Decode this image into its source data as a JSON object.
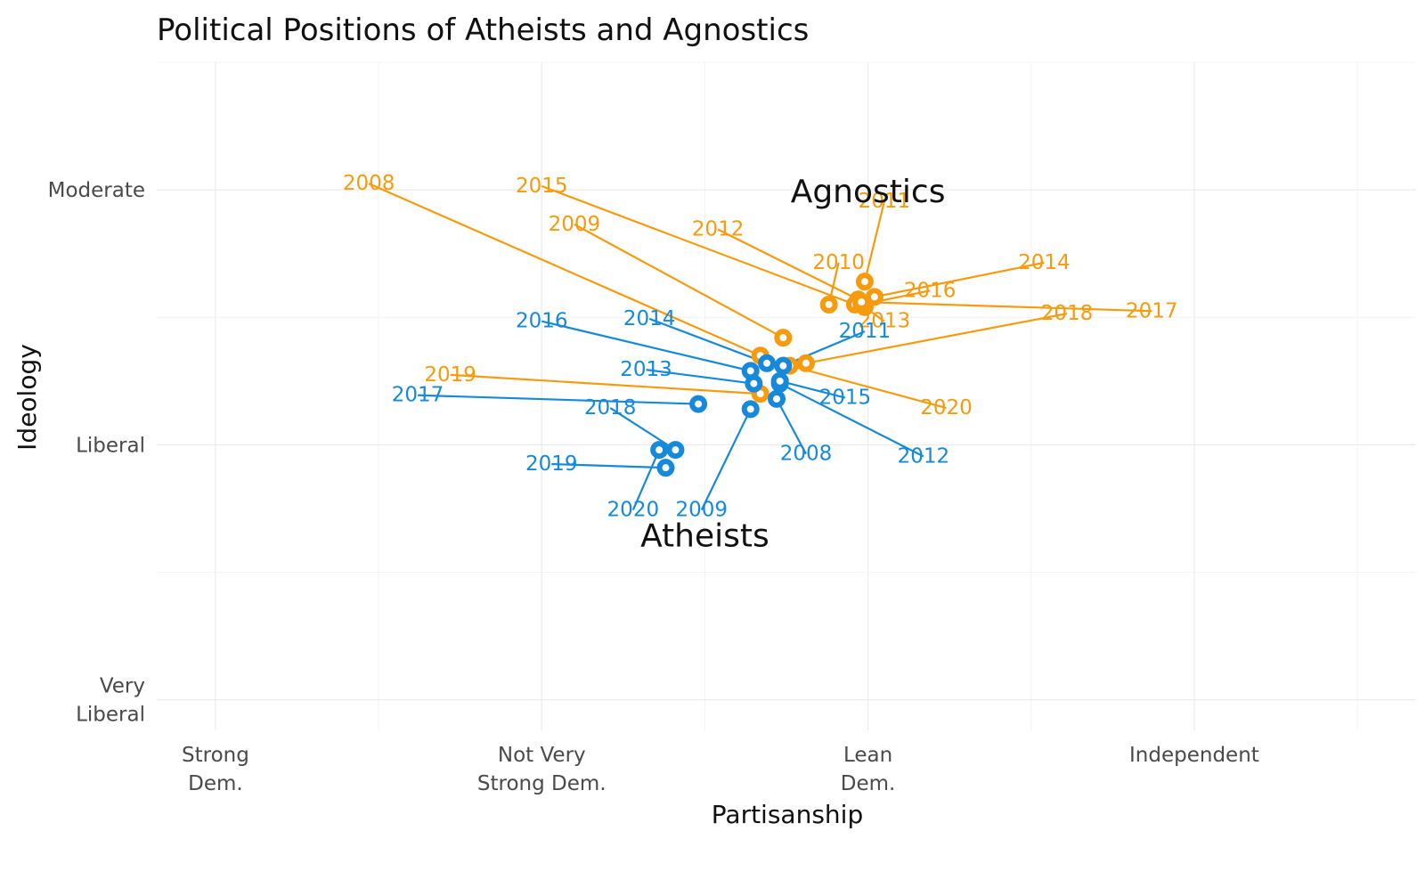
{
  "chart_data": {
    "type": "scatter",
    "title": "Political Positions of Atheists and Agnostics",
    "xlabel": "Partisanship",
    "ylabel": "Ideology",
    "x_ticks": [
      {
        "value": 0,
        "label": [
          "Strong",
          "Dem."
        ]
      },
      {
        "value": 1,
        "label": [
          "Not Very",
          "Strong Dem."
        ]
      },
      {
        "value": 2,
        "label": [
          "Lean",
          "Dem."
        ]
      },
      {
        "value": 3,
        "label": [
          "Independent"
        ]
      }
    ],
    "y_ticks": [
      {
        "value": 0,
        "label": [
          "Very",
          "Liberal"
        ]
      },
      {
        "value": 1,
        "label": [
          "Liberal"
        ]
      },
      {
        "value": 2,
        "label": [
          "Moderate"
        ]
      }
    ],
    "xlim": [
      -0.18,
      3.68
    ],
    "ylim": [
      -0.12,
      2.5
    ],
    "series": [
      {
        "name": "Agnostics",
        "color": "#F79B0E",
        "points": [
          {
            "year": "2008",
            "x": 1.67,
            "y": 1.35
          },
          {
            "year": "2009",
            "x": 1.74,
            "y": 1.42
          },
          {
            "year": "2010",
            "x": 1.88,
            "y": 1.55
          },
          {
            "year": "2011",
            "x": 1.99,
            "y": 1.64
          },
          {
            "year": "2012",
            "x": 1.97,
            "y": 1.57
          },
          {
            "year": "2013",
            "x": 1.99,
            "y": 1.54
          },
          {
            "year": "2014",
            "x": 2.02,
            "y": 1.58
          },
          {
            "year": "2015",
            "x": 1.96,
            "y": 1.55
          },
          {
            "year": "2016",
            "x": 1.98,
            "y": 1.55
          },
          {
            "year": "2017",
            "x": 1.98,
            "y": 1.56
          },
          {
            "year": "2018",
            "x": 1.81,
            "y": 1.32
          },
          {
            "year": "2019",
            "x": 1.67,
            "y": 1.2
          },
          {
            "year": "2020",
            "x": 1.76,
            "y": 1.31
          }
        ]
      },
      {
        "name": "Atheists",
        "color": "#1689DA",
        "points": [
          {
            "year": "2008",
            "x": 1.72,
            "y": 1.18
          },
          {
            "year": "2009",
            "x": 1.64,
            "y": 1.14
          },
          {
            "year": "2011",
            "x": 1.74,
            "y": 1.31
          },
          {
            "year": "2012",
            "x": 1.73,
            "y": 1.24
          },
          {
            "year": "2013",
            "x": 1.65,
            "y": 1.24
          },
          {
            "year": "2014",
            "x": 1.69,
            "y": 1.32
          },
          {
            "year": "2015",
            "x": 1.73,
            "y": 1.25
          },
          {
            "year": "2016",
            "x": 1.64,
            "y": 1.29
          },
          {
            "year": "2017",
            "x": 1.48,
            "y": 1.16
          },
          {
            "year": "2018",
            "x": 1.41,
            "y": 0.98
          },
          {
            "year": "2019",
            "x": 1.38,
            "y": 0.91
          },
          {
            "year": "2020",
            "x": 1.36,
            "y": 0.98
          }
        ]
      }
    ],
    "annotations": [
      {
        "text": "Agnostics",
        "x": 2.0,
        "y": 2.0
      },
      {
        "text": "Atheists",
        "x": 1.5,
        "y": 0.65
      }
    ],
    "grid": true,
    "legend": "none"
  }
}
